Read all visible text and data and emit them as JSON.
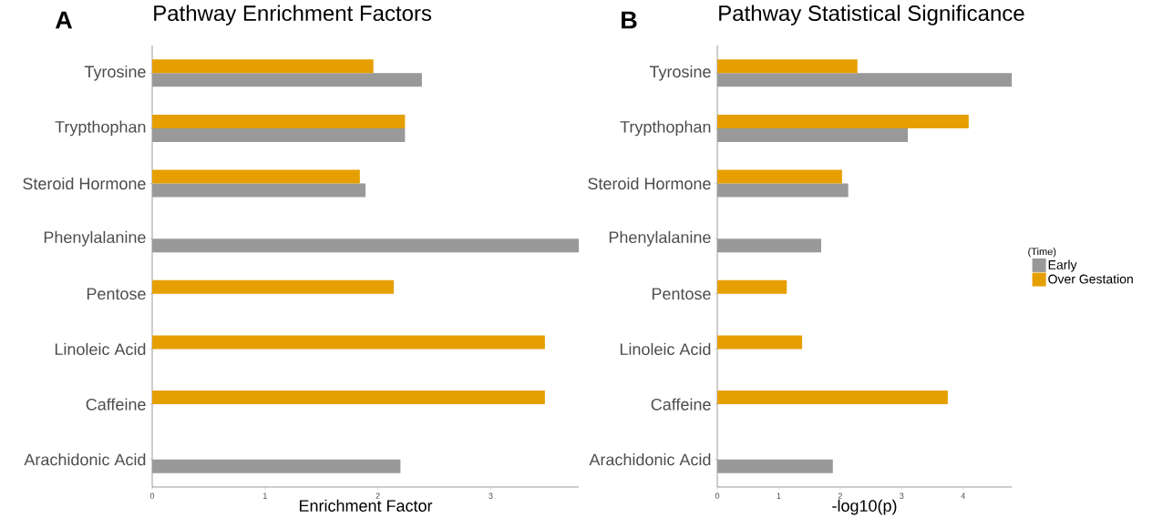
{
  "chart_data": [
    {
      "type": "bar",
      "orientation": "horizontal",
      "title": "Pathway Enrichment Factors",
      "xlabel": "Enrichment Factor",
      "annotations": [
        "A"
      ],
      "categories": [
        "Tyrosine",
        "Trypthophan",
        "Steroid Hormone",
        "Phenylalanine",
        "Pentose",
        "Linoleic Acid",
        "Caffeine",
        "Arachidonic Acid"
      ],
      "series": [
        {
          "color": "#999999",
          "values": [
            2.39,
            2.24,
            1.89,
            3.78,
            null,
            null,
            null,
            2.2
          ]
        },
        {
          "color": "#e69f00",
          "values": [
            1.96,
            2.24,
            1.84,
            null,
            2.14,
            3.48,
            3.48,
            null
          ]
        }
      ],
      "xlim": [
        0,
        3.78
      ],
      "xticks": [
        0,
        1,
        2,
        3
      ]
    },
    {
      "type": "bar",
      "orientation": "horizontal",
      "title": "Pathway Statistical Significance",
      "xlabel": "-log10(p)",
      "annotations": [
        "B"
      ],
      "legend": "right",
      "legend_title": "(Time)",
      "categories": [
        "Tyrosine",
        "Trypthophan",
        "Steroid Hormone",
        "Phenylalanine",
        "Pentose",
        "Linoleic Acid",
        "Caffeine",
        "Arachidonic Acid"
      ],
      "series": [
        {
          "name": "Early",
          "color": "#999999",
          "values": [
            4.79,
            3.1,
            2.13,
            1.69,
            null,
            null,
            null,
            1.88
          ]
        },
        {
          "name": "Over Gestation",
          "color": "#e69f00",
          "values": [
            2.28,
            4.09,
            2.03,
            null,
            1.13,
            1.38,
            3.75,
            null
          ]
        }
      ],
      "xlim": [
        0,
        4.79
      ],
      "xticks": [
        0,
        1,
        2,
        3,
        4
      ]
    }
  ]
}
